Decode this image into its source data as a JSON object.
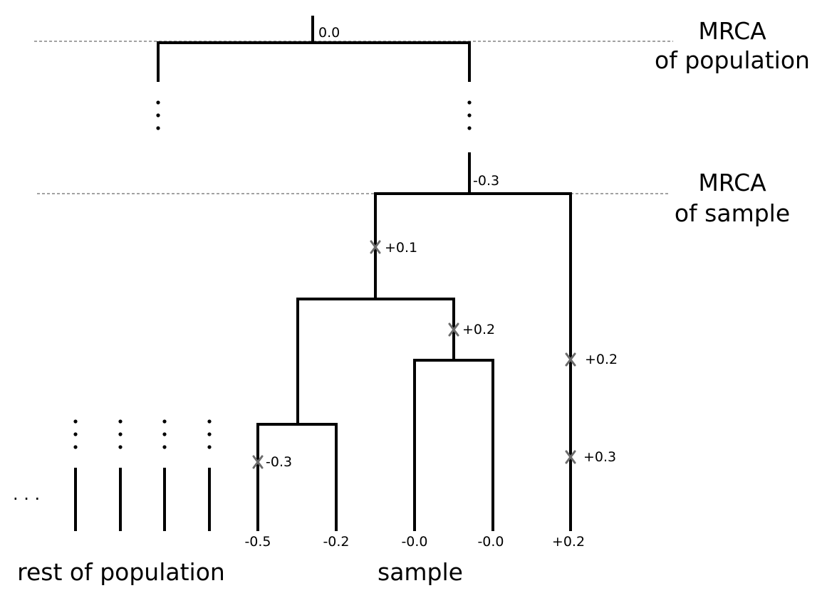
{
  "root": {
    "value": "0.0",
    "label_line1": "MRCA",
    "label_line2": "of population"
  },
  "sample_mrca": {
    "value": "-0.3",
    "label_line1": "MRCA",
    "label_line2": "of sample"
  },
  "mutations": {
    "m1": "+0.1",
    "m2": "+0.2",
    "m3": "+0.2",
    "m4": "+0.3",
    "m5": "-0.3"
  },
  "leaves": {
    "leaf1": "-0.5",
    "leaf2": "-0.2",
    "leaf3": "-0.0",
    "leaf4": "-0.0",
    "leaf5": "+0.2"
  },
  "captions": {
    "rest": "rest of population",
    "sample": "sample",
    "ellipsis": ". . ."
  },
  "colors": {
    "branch": "#000000",
    "mutation_marker": "#6b6b6b",
    "reference_line": "#444444"
  }
}
